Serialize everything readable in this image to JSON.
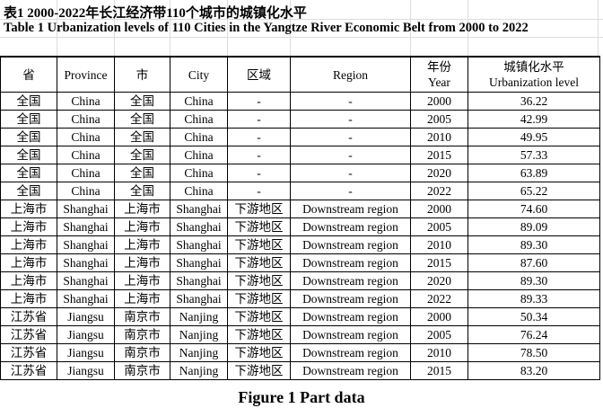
{
  "title_zh": "表1 2000-2022年长江经济带110个城市的城镇化水平",
  "title_en": "Table 1 Urbanization levels of 110 Cities in the Yangtze River Economic Belt from 2000 to 2022",
  "headers": [
    "省",
    "Province",
    "市",
    "City",
    "区域",
    "Region",
    "年份",
    "Year",
    "城镇化水平",
    "Urbanization level"
  ],
  "rows": [
    [
      "全国",
      "China",
      "全国",
      "China",
      "-",
      "-",
      "2000",
      "36.22"
    ],
    [
      "全国",
      "China",
      "全国",
      "China",
      "-",
      "-",
      "2005",
      "42.99"
    ],
    [
      "全国",
      "China",
      "全国",
      "China",
      "-",
      "-",
      "2010",
      "49.95"
    ],
    [
      "全国",
      "China",
      "全国",
      "China",
      "-",
      "-",
      "2015",
      "57.33"
    ],
    [
      "全国",
      "China",
      "全国",
      "China",
      "-",
      "-",
      "2020",
      "63.89"
    ],
    [
      "全国",
      "China",
      "全国",
      "China",
      "-",
      "-",
      "2022",
      "65.22"
    ],
    [
      "上海市",
      "Shanghai",
      "上海市",
      "Shanghai",
      "下游地区",
      "Downstream region",
      "2000",
      "74.60"
    ],
    [
      "上海市",
      "Shanghai",
      "上海市",
      "Shanghai",
      "下游地区",
      "Downstream region",
      "2005",
      "89.09"
    ],
    [
      "上海市",
      "Shanghai",
      "上海市",
      "Shanghai",
      "下游地区",
      "Downstream region",
      "2010",
      "89.30"
    ],
    [
      "上海市",
      "Shanghai",
      "上海市",
      "Shanghai",
      "下游地区",
      "Downstream region",
      "2015",
      "87.60"
    ],
    [
      "上海市",
      "Shanghai",
      "上海市",
      "Shanghai",
      "下游地区",
      "Downstream region",
      "2020",
      "89.30"
    ],
    [
      "上海市",
      "Shanghai",
      "上海市",
      "Shanghai",
      "下游地区",
      "Downstream region",
      "2022",
      "89.33"
    ],
    [
      "江苏省",
      "Jiangsu",
      "南京市",
      "Nanjing",
      "下游地区",
      "Downstream region",
      "2000",
      "50.34"
    ],
    [
      "江苏省",
      "Jiangsu",
      "南京市",
      "Nanjing",
      "下游地区",
      "Downstream region",
      "2005",
      "76.24"
    ],
    [
      "江苏省",
      "Jiangsu",
      "南京市",
      "Nanjing",
      "下游地区",
      "Downstream region",
      "2010",
      "78.50"
    ],
    [
      "江苏省",
      "Jiangsu",
      "南京市",
      "Nanjing",
      "下游地区",
      "Downstream region",
      "2015",
      "83.20"
    ]
  ],
  "caption": "Figure 1  Part data"
}
